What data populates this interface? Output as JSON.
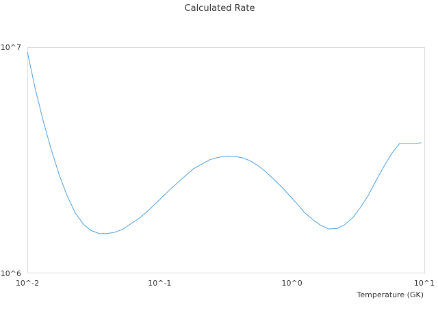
{
  "chart_data": {
    "type": "line",
    "title": "Calculated Rate",
    "xlabel": "Temperature (GK)",
    "ylabel": "",
    "x_scale": "log",
    "y_scale": "log",
    "xlim": [
      0.01,
      10
    ],
    "ylim": [
      1000000,
      10000000
    ],
    "grid": false,
    "legend": "none",
    "x_ticks": [
      {
        "value": 0.01,
        "label": "10^-2"
      },
      {
        "value": 0.1,
        "label": "10^-1"
      },
      {
        "value": 1,
        "label": "10^0"
      },
      {
        "value": 10,
        "label": "10^1"
      }
    ],
    "y_ticks": [
      {
        "value": 1000000,
        "label": "10^6"
      },
      {
        "value": 10000000,
        "label": "10^7"
      }
    ],
    "line_color": "#4a9ee0",
    "series": [
      {
        "x": [
          0.01,
          0.0115,
          0.0132,
          0.0152,
          0.0175,
          0.02,
          0.023,
          0.0265,
          0.03,
          0.035,
          0.04,
          0.046,
          0.053,
          0.06,
          0.07,
          0.08,
          0.092,
          0.105,
          0.12,
          0.14,
          0.16,
          0.18,
          0.21,
          0.24,
          0.28,
          0.32,
          0.37,
          0.42,
          0.48,
          0.55,
          0.63,
          0.72,
          0.83,
          0.95,
          1.1,
          1.25,
          1.45,
          1.65,
          1.9,
          2.2,
          2.5,
          2.9,
          3.3,
          3.8,
          4.3,
          5.0,
          5.7,
          6.5,
          7.5,
          8.6,
          9.5
        ],
        "y": [
          9500000,
          6500000,
          4700000,
          3500000,
          2700000,
          2200000,
          1850000,
          1650000,
          1550000,
          1500000,
          1500000,
          1520000,
          1570000,
          1650000,
          1750000,
          1870000,
          2020000,
          2180000,
          2350000,
          2550000,
          2730000,
          2900000,
          3050000,
          3180000,
          3260000,
          3300000,
          3290000,
          3240000,
          3150000,
          3000000,
          2820000,
          2620000,
          2420000,
          2220000,
          2020000,
          1850000,
          1720000,
          1630000,
          1570000,
          1580000,
          1640000,
          1770000,
          1960000,
          2230000,
          2560000,
          3000000,
          3400000,
          3750000,
          3750000,
          3750000,
          3780000
        ]
      }
    ]
  }
}
